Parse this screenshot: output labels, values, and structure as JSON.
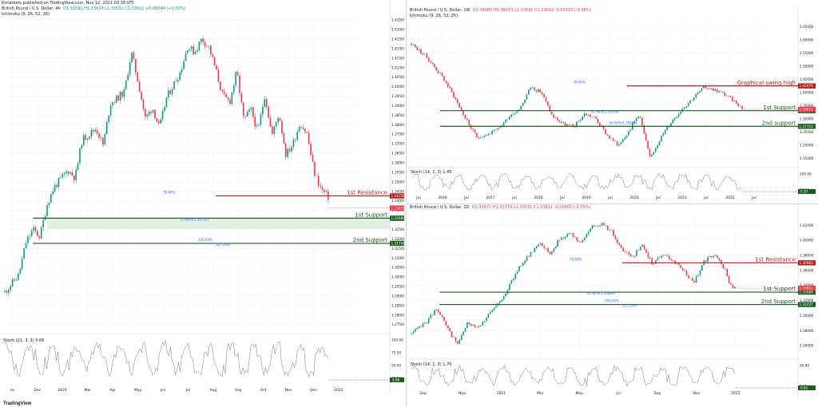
{
  "publisher": "Kimarkets published on TradingView.com, Nov 12, 2021 03:35 UTC",
  "brand": "TradingView",
  "colors": {
    "up": "#089981",
    "down": "#f23645",
    "resistance": "#b71c1c",
    "support": "#1b5e20",
    "zone_res": "#f8c5c5",
    "zone_sup": "#c8e6c9"
  },
  "chart_data": [
    {
      "type": "line",
      "name": "4h",
      "title": "British Pound / U.S. Dollar, 4h",
      "ohlc": "O1.33591 H1.33624 L1.33531 C1.33611 +0.00040 (+0.03%)",
      "indicator": "Ichimoku (9, 26, 52, 26)",
      "x_ticks": [
        "ov",
        "Dec",
        "2021",
        "Mar",
        "Apr",
        "May",
        "Jun",
        "Jul",
        "Aug",
        "Sep",
        "Oct",
        "Nov",
        "Dec",
        "2022"
      ],
      "y_ticks": [
        "1.43500",
        "1.43000",
        "1.42500",
        "1.42000",
        "1.41500",
        "1.41000",
        "1.40500",
        "1.40000",
        "1.39500",
        "1.39000",
        "1.38500",
        "1.38000",
        "1.37500",
        "1.37000",
        "1.36500",
        "1.36000",
        "1.35500",
        "1.35000",
        "1.34500",
        "1.34000",
        "1.33500",
        "1.33000",
        "1.32500",
        "1.32000",
        "1.31500",
        "1.31000",
        "1.30500",
        "1.30000",
        "1.29500",
        "1.29000",
        "1.28500",
        "1.28000",
        "1.27500"
      ],
      "ylim": [
        1.2735,
        1.4362
      ],
      "price_path": [
        [
          0,
          1.292
        ],
        [
          2,
          1.301
        ],
        [
          3,
          1.318
        ],
        [
          4,
          1.325
        ],
        [
          5,
          1.321
        ],
        [
          6,
          1.338
        ],
        [
          7,
          1.347
        ],
        [
          9,
          1.356
        ],
        [
          10,
          1.352
        ],
        [
          11,
          1.372
        ],
        [
          13,
          1.378
        ],
        [
          14,
          1.369
        ],
        [
          15,
          1.391
        ],
        [
          17,
          1.397
        ],
        [
          18,
          1.418
        ],
        [
          19,
          1.402
        ],
        [
          20,
          1.383
        ],
        [
          21,
          1.389
        ],
        [
          22,
          1.378
        ],
        [
          23,
          1.394
        ],
        [
          25,
          1.408
        ],
        [
          26,
          1.421
        ],
        [
          27,
          1.418
        ],
        [
          28,
          1.425
        ],
        [
          29,
          1.421
        ],
        [
          30,
          1.409
        ],
        [
          31,
          1.395
        ],
        [
          32,
          1.392
        ],
        [
          33,
          1.408
        ],
        [
          34,
          1.382
        ],
        [
          35,
          1.388
        ],
        [
          36,
          1.376
        ],
        [
          37,
          1.396
        ],
        [
          38,
          1.374
        ],
        [
          39,
          1.386
        ],
        [
          40,
          1.364
        ],
        [
          41,
          1.37
        ],
        [
          42,
          1.381
        ],
        [
          43,
          1.375
        ],
        [
          44,
          1.355
        ],
        [
          45,
          1.346
        ],
        [
          46,
          1.342
        ]
      ],
      "levels": [
        {
          "label": "1st Resistance",
          "value": 1.3425,
          "tag": "1.34250",
          "kind": "resistance"
        },
        {
          "label": "1st Support",
          "value": 1.3308,
          "tag": "1.33080",
          "kind": "support"
        },
        {
          "label": "2nd Support",
          "value": 1.31756,
          "tag": "1.31756",
          "kind": "support"
        }
      ],
      "current_tag": "1.33611",
      "fib_labels": [
        "78.60%",
        "23.60%(1.34150)",
        "100.00%",
        "127.20%"
      ],
      "oscillator": {
        "label": "Stoch (21, 3, 3)  5.66",
        "ticks": [
          "100.00",
          "75.00",
          "50.00",
          "25.00"
        ],
        "last": "5.66"
      }
    },
    {
      "type": "line",
      "name": "1W",
      "title": "British Pound / U.S. Dollar, 1W",
      "ohlc": "O1.34980 H1.36073 L1.33531 C1.33612 -0.01323 (-0.98%)",
      "indicator": "Ichimoku (9, 26, 52, 26)",
      "x_ticks": [
        "Jul",
        "2016",
        "Jul",
        "2017",
        "Jul",
        "2018",
        "Jul",
        "2019",
        "Jul",
        "2020",
        "Jul",
        "2021",
        "Jul",
        "2022",
        "Jul"
      ],
      "y_ticks": [
        "1.65000",
        "1.60000",
        "1.55000",
        "1.50000",
        "1.45000",
        "1.40000",
        "1.35000",
        "1.30000",
        "1.25000",
        "1.20000",
        "1.15000"
      ],
      "ylim": [
        1.13,
        1.675
      ],
      "price_path": [
        [
          0,
          1.585
        ],
        [
          3,
          1.53
        ],
        [
          6,
          1.45
        ],
        [
          8,
          1.38
        ],
        [
          10,
          1.3
        ],
        [
          12,
          1.23
        ],
        [
          14,
          1.24
        ],
        [
          16,
          1.26
        ],
        [
          18,
          1.31
        ],
        [
          20,
          1.34
        ],
        [
          22,
          1.42
        ],
        [
          24,
          1.4
        ],
        [
          26,
          1.31
        ],
        [
          28,
          1.28
        ],
        [
          30,
          1.27
        ],
        [
          32,
          1.32
        ],
        [
          34,
          1.3
        ],
        [
          36,
          1.24
        ],
        [
          38,
          1.2
        ],
        [
          40,
          1.25
        ],
        [
          42,
          1.32
        ],
        [
          44,
          1.15
        ],
        [
          46,
          1.23
        ],
        [
          48,
          1.29
        ],
        [
          50,
          1.34
        ],
        [
          52,
          1.38
        ],
        [
          54,
          1.42
        ],
        [
          56,
          1.41
        ],
        [
          58,
          1.39
        ],
        [
          60,
          1.36
        ],
        [
          61,
          1.34
        ]
      ],
      "levels": [
        {
          "label": "Graphical swing high",
          "value": 1.4248,
          "tag": "1.42479",
          "kind": "resistance"
        },
        {
          "label": "1st Support",
          "value": 1.3308,
          "tag": "1.33084",
          "kind": "support"
        },
        {
          "label": "2nd support",
          "value": 1.27153,
          "tag": "1.27153",
          "kind": "support"
        }
      ],
      "current_tag": "1.33612",
      "fib_labels": [
        "78.60%",
        "61.80%(1.33436)",
        "50.00%(1.28568)"
      ],
      "oscillator": {
        "label": "Stoch (14, 1, 3)  1.45",
        "ticks": [
          "100.00",
          "50.00"
        ],
        "last": "0.37"
      }
    },
    {
      "type": "line",
      "name": "1D",
      "title": "British Pound / U.S. Dollar, 1D",
      "ohlc": "O1.33672 H1.33719 L1.33531 C1.33611 -0.00061 (-0.05%)",
      "indicator": "",
      "x_ticks": [
        "Sep",
        "Nov",
        "2021",
        "Mar",
        "May",
        "Jul",
        "Sep",
        "Nov",
        "2022"
      ],
      "y_ticks": [
        "1.42000",
        "1.40000",
        "1.38000",
        "1.36000",
        "1.34000",
        "1.32000",
        "1.30000",
        "1.28000",
        "1.26000"
      ],
      "ylim": [
        1.246,
        1.437
      ],
      "price_path": [
        [
          0,
          1.275
        ],
        [
          3,
          1.292
        ],
        [
          5,
          1.31
        ],
        [
          7,
          1.282
        ],
        [
          9,
          1.262
        ],
        [
          11,
          1.29
        ],
        [
          13,
          1.285
        ],
        [
          15,
          1.3
        ],
        [
          17,
          1.316
        ],
        [
          19,
          1.338
        ],
        [
          21,
          1.365
        ],
        [
          23,
          1.38
        ],
        [
          25,
          1.398
        ],
        [
          27,
          1.382
        ],
        [
          29,
          1.403
        ],
        [
          31,
          1.408
        ],
        [
          33,
          1.395
        ],
        [
          35,
          1.418
        ],
        [
          37,
          1.422
        ],
        [
          39,
          1.412
        ],
        [
          41,
          1.386
        ],
        [
          43,
          1.378
        ],
        [
          45,
          1.392
        ],
        [
          47,
          1.368
        ],
        [
          49,
          1.382
        ],
        [
          51,
          1.372
        ],
        [
          53,
          1.36
        ],
        [
          55,
          1.343
        ],
        [
          57,
          1.372
        ],
        [
          59,
          1.381
        ],
        [
          61,
          1.362
        ],
        [
          62,
          1.341
        ],
        [
          63,
          1.336
        ]
      ],
      "levels": [
        {
          "label": "1st Resistance",
          "value": 1.3698,
          "tag": "1.36983",
          "kind": "resistance"
        },
        {
          "label": "1st Support",
          "value": 1.33084,
          "tag": "1.33084",
          "kind": "support"
        },
        {
          "label": "2nd Support",
          "value": 1.31437,
          "tag": "1.31437",
          "kind": "support"
        }
      ],
      "current_tag": "1.33611",
      "fib_labels": [
        "78.60%",
        "61.80%(1.33689)",
        "100.00%",
        "127.20%"
      ],
      "oscillator": {
        "label": "Stoch (14, 1, 3)  1.70",
        "ticks": [
          "50.00",
          "0.00"
        ],
        "last": "0.81"
      }
    }
  ]
}
